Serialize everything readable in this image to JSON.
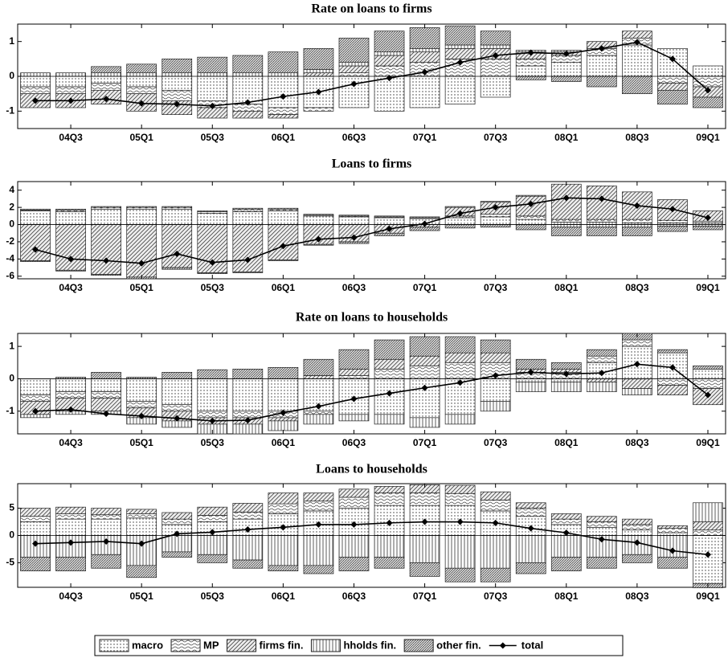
{
  "chart_data": [
    {
      "type": "bar",
      "title": "Rate on loans to firms",
      "categories": [
        null,
        "04Q3",
        null,
        "05Q1",
        null,
        "05Q3",
        null,
        "06Q1",
        null,
        "06Q3",
        null,
        "07Q1",
        null,
        "07Q3",
        null,
        "08Q1",
        null,
        "08Q3",
        null,
        "09Q1"
      ],
      "ylim": [
        -1.5,
        1.5
      ],
      "yticks": [
        -1,
        0,
        1
      ],
      "series": [
        {
          "name": "macro",
          "pattern": "dots",
          "values": [
            -0.3,
            -0.3,
            -0.2,
            -0.3,
            -0.4,
            -0.7,
            -0.8,
            -0.9,
            -0.9,
            -0.9,
            -1.0,
            -0.9,
            -0.8,
            -0.6,
            0.3,
            0.4,
            0.6,
            0.9,
            0.8,
            0.3
          ]
        },
        {
          "name": "MP",
          "pattern": "waves",
          "values": [
            -0.2,
            -0.2,
            -0.2,
            -0.2,
            -0.3,
            -0.2,
            -0.2,
            -0.2,
            -0.1,
            0.1,
            0.3,
            0.4,
            0.5,
            0.5,
            0.2,
            0.2,
            0.2,
            0.2,
            -0.2,
            -0.3
          ]
        },
        {
          "name": "firms fin.",
          "pattern": "diagonal",
          "values": [
            -0.4,
            -0.4,
            -0.4,
            -0.5,
            -0.4,
            -0.3,
            -0.2,
            -0.1,
            0.1,
            0.2,
            0.3,
            0.3,
            0.3,
            0.3,
            0.2,
            0.1,
            0.2,
            0.2,
            -0.2,
            -0.3
          ]
        },
        {
          "name": "hholds fin.",
          "pattern": "vertical",
          "values": [
            0.1,
            0.1,
            0.1,
            0.1,
            0.1,
            0.1,
            0.1,
            0.1,
            0.1,
            0.1,
            0.1,
            0.1,
            0.1,
            0.1,
            0.05,
            0.05,
            0,
            0,
            0,
            0
          ]
        },
        {
          "name": "other fin.",
          "pattern": "crosshatch",
          "values": [
            0,
            0,
            0.18,
            0.25,
            0.4,
            0.45,
            0.5,
            0.6,
            0.6,
            0.7,
            0.6,
            0.6,
            0.55,
            0.4,
            -0.1,
            -0.15,
            -0.3,
            -0.5,
            -0.4,
            -0.3
          ]
        },
        {
          "name": "total",
          "type": "line",
          "color": "#000",
          "values": [
            -0.7,
            -0.7,
            -0.65,
            -0.78,
            -0.8,
            -0.85,
            -0.75,
            -0.58,
            -0.45,
            -0.22,
            -0.05,
            0.12,
            0.4,
            0.6,
            0.68,
            0.65,
            0.8,
            0.98,
            0.5,
            -0.4
          ]
        }
      ]
    },
    {
      "type": "bar",
      "title": "Loans to firms",
      "categories": [
        null,
        "04Q3",
        null,
        "05Q1",
        null,
        "05Q3",
        null,
        "06Q1",
        null,
        "06Q3",
        null,
        "07Q1",
        null,
        "07Q3",
        null,
        "08Q1",
        null,
        "08Q3",
        null,
        "09Q1"
      ],
      "ylim": [
        -6.3,
        5
      ],
      "yticks": [
        -6,
        -4,
        -2,
        0,
        2,
        4
      ],
      "series": [
        {
          "name": "macro",
          "pattern": "dots",
          "values": [
            1.6,
            1.5,
            1.8,
            1.8,
            1.8,
            1.3,
            1.5,
            1.6,
            1.0,
            0.9,
            0.8,
            0.7,
            0.8,
            0.9,
            0.6,
            0.3,
            0.3,
            0.2,
            0.2,
            0.2
          ]
        },
        {
          "name": "MP",
          "pattern": "waves",
          "values": [
            0.1,
            0.2,
            0.2,
            0.2,
            0.2,
            0.2,
            0.3,
            0.2,
            0.1,
            0.1,
            0.1,
            0.1,
            0.2,
            0.3,
            0.4,
            0.3,
            0.3,
            0.4,
            0.3,
            0.2
          ]
        },
        {
          "name": "firms fin.",
          "pattern": "diagonal",
          "values": [
            -4.2,
            -5.3,
            -5.8,
            -6.1,
            -5.0,
            -5.6,
            -5.5,
            -4.1,
            -2.3,
            -2.0,
            -1.0,
            -0.3,
            1.0,
            1.4,
            2.3,
            4.1,
            3.9,
            3.2,
            2.4,
            1.2
          ]
        },
        {
          "name": "hholds fin.",
          "pattern": "vertical",
          "values": [
            0.1,
            0.1,
            0.1,
            0.1,
            0.1,
            0.1,
            0.1,
            0.1,
            0.1,
            0.1,
            0.1,
            0.1,
            0.1,
            0.1,
            0.1,
            -0.3,
            -0.3,
            -0.3,
            -0.2,
            -0.2
          ]
        },
        {
          "name": "other fin.",
          "pattern": "crosshatch",
          "values": [
            -0.1,
            -0.1,
            -0.1,
            -0.2,
            -0.2,
            -0.1,
            -0.1,
            -0.1,
            -0.1,
            -0.2,
            -0.3,
            -0.4,
            -0.4,
            -0.3,
            -0.6,
            -1.0,
            -1.0,
            -1.0,
            -0.6,
            -0.4
          ]
        },
        {
          "name": "total",
          "type": "line",
          "color": "#000",
          "values": [
            -2.9,
            -4.0,
            -4.2,
            -4.5,
            -3.4,
            -4.4,
            -4.1,
            -2.5,
            -1.7,
            -1.5,
            -0.5,
            0.1,
            1.3,
            2.0,
            2.4,
            3.1,
            3.0,
            2.2,
            1.8,
            0.8
          ]
        }
      ]
    },
    {
      "type": "bar",
      "title": "Rate on loans to households",
      "categories": [
        null,
        "04Q3",
        null,
        "05Q1",
        null,
        "05Q3",
        null,
        "06Q1",
        null,
        "06Q3",
        null,
        "07Q1",
        null,
        "07Q3",
        null,
        "08Q1",
        null,
        "08Q3",
        null,
        "09Q1"
      ],
      "ylim": [
        -1.7,
        1.4
      ],
      "yticks": [
        -1,
        0,
        1
      ],
      "series": [
        {
          "name": "macro",
          "pattern": "dots",
          "values": [
            -0.5,
            -0.4,
            -0.4,
            -0.7,
            -0.8,
            -1.0,
            -1.0,
            -1.0,
            -1.0,
            -1.1,
            -1.1,
            -1.2,
            -1.1,
            -0.7,
            -0.1,
            -0.1,
            0.5,
            1.0,
            0.8,
            0.3
          ]
        },
        {
          "name": "MP",
          "pattern": "waves",
          "values": [
            -0.2,
            -0.2,
            -0.2,
            -0.2,
            -0.2,
            -0.2,
            -0.2,
            -0.2,
            -0.1,
            0.1,
            0.3,
            0.4,
            0.5,
            0.5,
            0.2,
            0.2,
            0.2,
            0.2,
            -0.2,
            -0.3
          ]
        },
        {
          "name": "firms fin.",
          "pattern": "diagonal",
          "values": [
            -0.4,
            -0.4,
            -0.4,
            -0.3,
            -0.3,
            -0.2,
            -0.2,
            -0.1,
            0.1,
            0.2,
            0.3,
            0.3,
            0.3,
            0.3,
            0.1,
            0.1,
            -0.1,
            -0.3,
            -0.3,
            -0.5
          ]
        },
        {
          "name": "hholds fin.",
          "pattern": "vertical",
          "values": [
            -0.1,
            -0.1,
            -0.1,
            -0.2,
            -0.2,
            -0.3,
            -0.3,
            -0.3,
            -0.3,
            -0.2,
            -0.3,
            -0.3,
            -0.3,
            -0.3,
            -0.3,
            -0.3,
            -0.3,
            -0.2,
            0,
            0
          ]
        },
        {
          "name": "other fin.",
          "pattern": "crosshatch",
          "values": [
            0,
            0.05,
            0.2,
            0.05,
            0.2,
            0.28,
            0.3,
            0.35,
            0.5,
            0.6,
            0.6,
            0.6,
            0.5,
            0.4,
            0.3,
            0.2,
            0.2,
            0.2,
            0.1,
            0.1
          ]
        },
        {
          "name": "total",
          "type": "line",
          "color": "#000",
          "values": [
            -1.0,
            -0.95,
            -1.08,
            -1.15,
            -1.22,
            -1.3,
            -1.28,
            -1.05,
            -0.85,
            -0.62,
            -0.45,
            -0.28,
            -0.12,
            0.1,
            0.2,
            0.15,
            0.18,
            0.45,
            0.35,
            -0.5
          ]
        }
      ]
    },
    {
      "type": "bar",
      "title": "Loans to households",
      "categories": [
        null,
        "04Q3",
        null,
        "05Q1",
        null,
        "05Q3",
        null,
        "06Q1",
        null,
        "06Q3",
        null,
        "07Q1",
        null,
        "07Q3",
        null,
        "08Q1",
        null,
        "08Q3",
        null,
        "09Q1"
      ],
      "ylim": [
        -9.5,
        9.5
      ],
      "yticks": [
        -5,
        0,
        5
      ],
      "series": [
        {
          "name": "macro",
          "pattern": "dots",
          "values": [
            2.5,
            3.0,
            3.0,
            3.2,
            2.0,
            2.5,
            3.0,
            4.0,
            4.5,
            5.0,
            5.5,
            5.5,
            5.5,
            4.5,
            3.5,
            2.0,
            1.5,
            1.0,
            0.5,
            -8.8
          ]
        },
        {
          "name": "MP",
          "pattern": "waves",
          "values": [
            1.0,
            1.0,
            0.8,
            0.8,
            1.0,
            1.2,
            1.3,
            1.8,
            1.8,
            2.0,
            2.3,
            2.3,
            2.2,
            2.0,
            1.5,
            1.0,
            1.0,
            1.0,
            0.8,
            1.0
          ]
        },
        {
          "name": "firms fin.",
          "pattern": "diagonal",
          "values": [
            1.5,
            1.2,
            1.2,
            0.8,
            1.2,
            1.5,
            1.6,
            2.0,
            1.5,
            1.5,
            1.2,
            1.5,
            1.5,
            1.5,
            1.0,
            1.0,
            1.0,
            1.0,
            0.5,
            1.5
          ]
        },
        {
          "name": "hholds fin.",
          "pattern": "vertical",
          "values": [
            -4.0,
            -4.0,
            -3.5,
            -5.5,
            -3.0,
            -3.5,
            -4.5,
            -5.5,
            -5.5,
            -4.0,
            -4.0,
            -5.0,
            -6.0,
            -6.0,
            -5.0,
            -4.0,
            -4.0,
            -3.5,
            -4.0,
            3.5
          ]
        },
        {
          "name": "other fin.",
          "pattern": "crosshatch",
          "values": [
            -2.5,
            -2.5,
            -2.5,
            -2.2,
            -1.0,
            -1.5,
            -1.5,
            -1.0,
            -1.5,
            -2.5,
            -2.0,
            -2.5,
            -2.5,
            -2.5,
            -2.0,
            -2.5,
            -2.0,
            -1.5,
            -2.0,
            -0.8
          ]
        },
        {
          "name": "total",
          "type": "line",
          "color": "#000",
          "values": [
            -1.5,
            -1.3,
            -1.1,
            -1.5,
            0.3,
            0.6,
            1.1,
            1.5,
            2.0,
            2.0,
            2.3,
            2.5,
            2.5,
            2.3,
            1.3,
            0.5,
            -0.7,
            -1.3,
            -2.8,
            -3.5
          ]
        }
      ]
    }
  ]
}
